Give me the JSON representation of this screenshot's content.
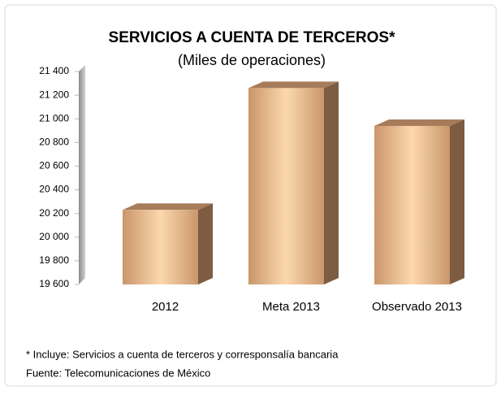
{
  "chart_data": {
    "type": "bar",
    "title": "SERVICIOS A CUENTA DE TERCEROS*",
    "subtitle": "(Miles de operaciones)",
    "categories": [
      "2012",
      "Meta 2013",
      "Observado 2013"
    ],
    "values": [
      20230,
      21260,
      20940
    ],
    "color": "#f5c99a",
    "ylim": [
      19600,
      21400
    ],
    "yticks": [
      {
        "value": 19600,
        "label": "19 600"
      },
      {
        "value": 19800,
        "label": "19 800"
      },
      {
        "value": 20000,
        "label": "20 000"
      },
      {
        "value": 20200,
        "label": "20 200"
      },
      {
        "value": 20400,
        "label": "20 400"
      },
      {
        "value": 20600,
        "label": "20 600"
      },
      {
        "value": 20800,
        "label": "20 800"
      },
      {
        "value": 21000,
        "label": "21 000"
      },
      {
        "value": 21200,
        "label": "21 200"
      },
      {
        "value": 21400,
        "label": "21 400"
      }
    ],
    "grid": false,
    "notes": [
      "* Incluye: Servicios a cuenta de terceros y corresponsalía bancaria",
      "Fuente: Telecomunicaciones de México"
    ]
  }
}
